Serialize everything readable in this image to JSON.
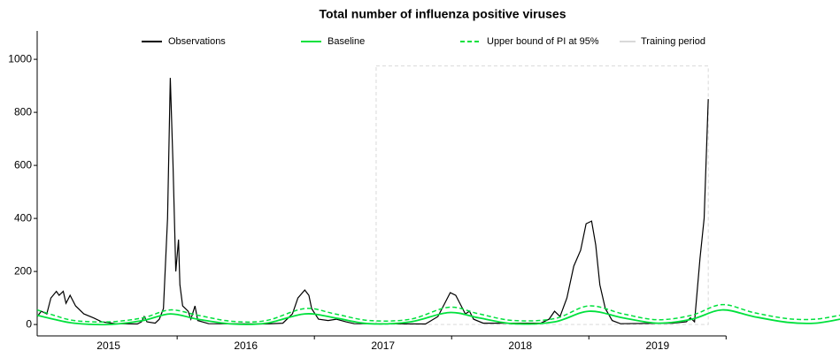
{
  "chart_data": {
    "type": "line",
    "title": "Total number of influenza positive viruses",
    "xlim": [
      2014.98,
      2020.83
    ],
    "xticks": [
      2015,
      2016,
      2017,
      2018,
      2019
    ],
    "ylim": [
      -43,
      1107
    ],
    "yticks": [
      0,
      200,
      400,
      600,
      800,
      1000
    ],
    "training_period": {
      "name": "Training period",
      "color": "#d9d9d9",
      "x": [
        2017.45,
        2019.87
      ],
      "ymax": 975
    },
    "series": [
      {
        "name": "Observations",
        "color": "#000000",
        "dash": false,
        "x": [
          2014.98,
          2015.01,
          2015.05,
          2015.08,
          2015.12,
          2015.14,
          2015.17,
          2015.19,
          2015.22,
          2015.26,
          2015.32,
          2015.39,
          2015.45,
          2015.55,
          2015.71,
          2015.74,
          2015.76,
          2015.78,
          2015.84,
          2015.87,
          2015.9,
          2015.93,
          2015.95,
          2015.97,
          2015.99,
          2016.01,
          2016.02,
          2016.04,
          2016.08,
          2016.1,
          2016.13,
          2016.15,
          2016.23,
          2016.65,
          2016.77,
          2016.84,
          2016.88,
          2016.93,
          2016.96,
          2016.98,
          2017.03,
          2017.1,
          2017.16,
          2017.23,
          2017.29,
          2017.81,
          2017.9,
          2017.95,
          2017.99,
          2018.03,
          2018.06,
          2018.1,
          2018.13,
          2018.16,
          2018.23,
          2018.65,
          2018.71,
          2018.75,
          2018.79,
          2018.84,
          2018.89,
          2018.94,
          2018.98,
          2019.02,
          2019.05,
          2019.08,
          2019.12,
          2019.17,
          2019.23,
          2019.61,
          2019.71,
          2019.74,
          2019.77,
          2019.81,
          2019.84,
          2019.87
        ],
        "values": [
          30,
          50,
          40,
          100,
          125,
          110,
          125,
          80,
          110,
          70,
          40,
          25,
          10,
          3,
          2,
          10,
          30,
          10,
          5,
          20,
          60,
          400,
          930,
          600,
          200,
          320,
          150,
          70,
          50,
          20,
          70,
          15,
          3,
          2,
          5,
          40,
          100,
          130,
          110,
          60,
          20,
          15,
          20,
          10,
          3,
          2,
          30,
          80,
          120,
          110,
          80,
          40,
          50,
          20,
          5,
          5,
          20,
          50,
          30,
          100,
          220,
          280,
          380,
          390,
          300,
          150,
          60,
          15,
          3,
          5,
          10,
          25,
          10,
          250,
          400,
          850
        ]
      },
      {
        "name": "Baseline",
        "color": "#00e13c",
        "dash": false,
        "x": [
          2014.98,
          2015.1,
          2015.25,
          2015.5,
          2015.75,
          2015.95,
          2016.15,
          2016.4,
          2016.65,
          2016.93,
          2017.15,
          2017.4,
          2017.7,
          2017.98,
          2018.2,
          2018.45,
          2018.75,
          2019.0,
          2019.25,
          2019.5,
          2019.75,
          2019.97,
          2020.2,
          2020.45,
          2020.65,
          2020.83
        ],
        "values": [
          35,
          20,
          5,
          0,
          15,
          40,
          20,
          2,
          5,
          40,
          25,
          3,
          10,
          45,
          25,
          3,
          10,
          50,
          25,
          5,
          20,
          55,
          30,
          8,
          5,
          20
        ]
      },
      {
        "name": "Upper bound of PI at 95%",
        "color": "#00e13c",
        "dash": true,
        "x": [
          2014.98,
          2015.1,
          2015.25,
          2015.5,
          2015.75,
          2015.95,
          2016.15,
          2016.4,
          2016.65,
          2016.93,
          2017.15,
          2017.4,
          2017.7,
          2017.98,
          2018.2,
          2018.45,
          2018.75,
          2019.0,
          2019.25,
          2019.5,
          2019.75,
          2019.97,
          2020.2,
          2020.45,
          2020.65,
          2020.83
        ],
        "values": [
          55,
          35,
          15,
          10,
          25,
          55,
          35,
          12,
          15,
          60,
          40,
          15,
          20,
          65,
          40,
          15,
          22,
          70,
          40,
          18,
          35,
          75,
          45,
          22,
          20,
          35
        ]
      }
    ]
  }
}
